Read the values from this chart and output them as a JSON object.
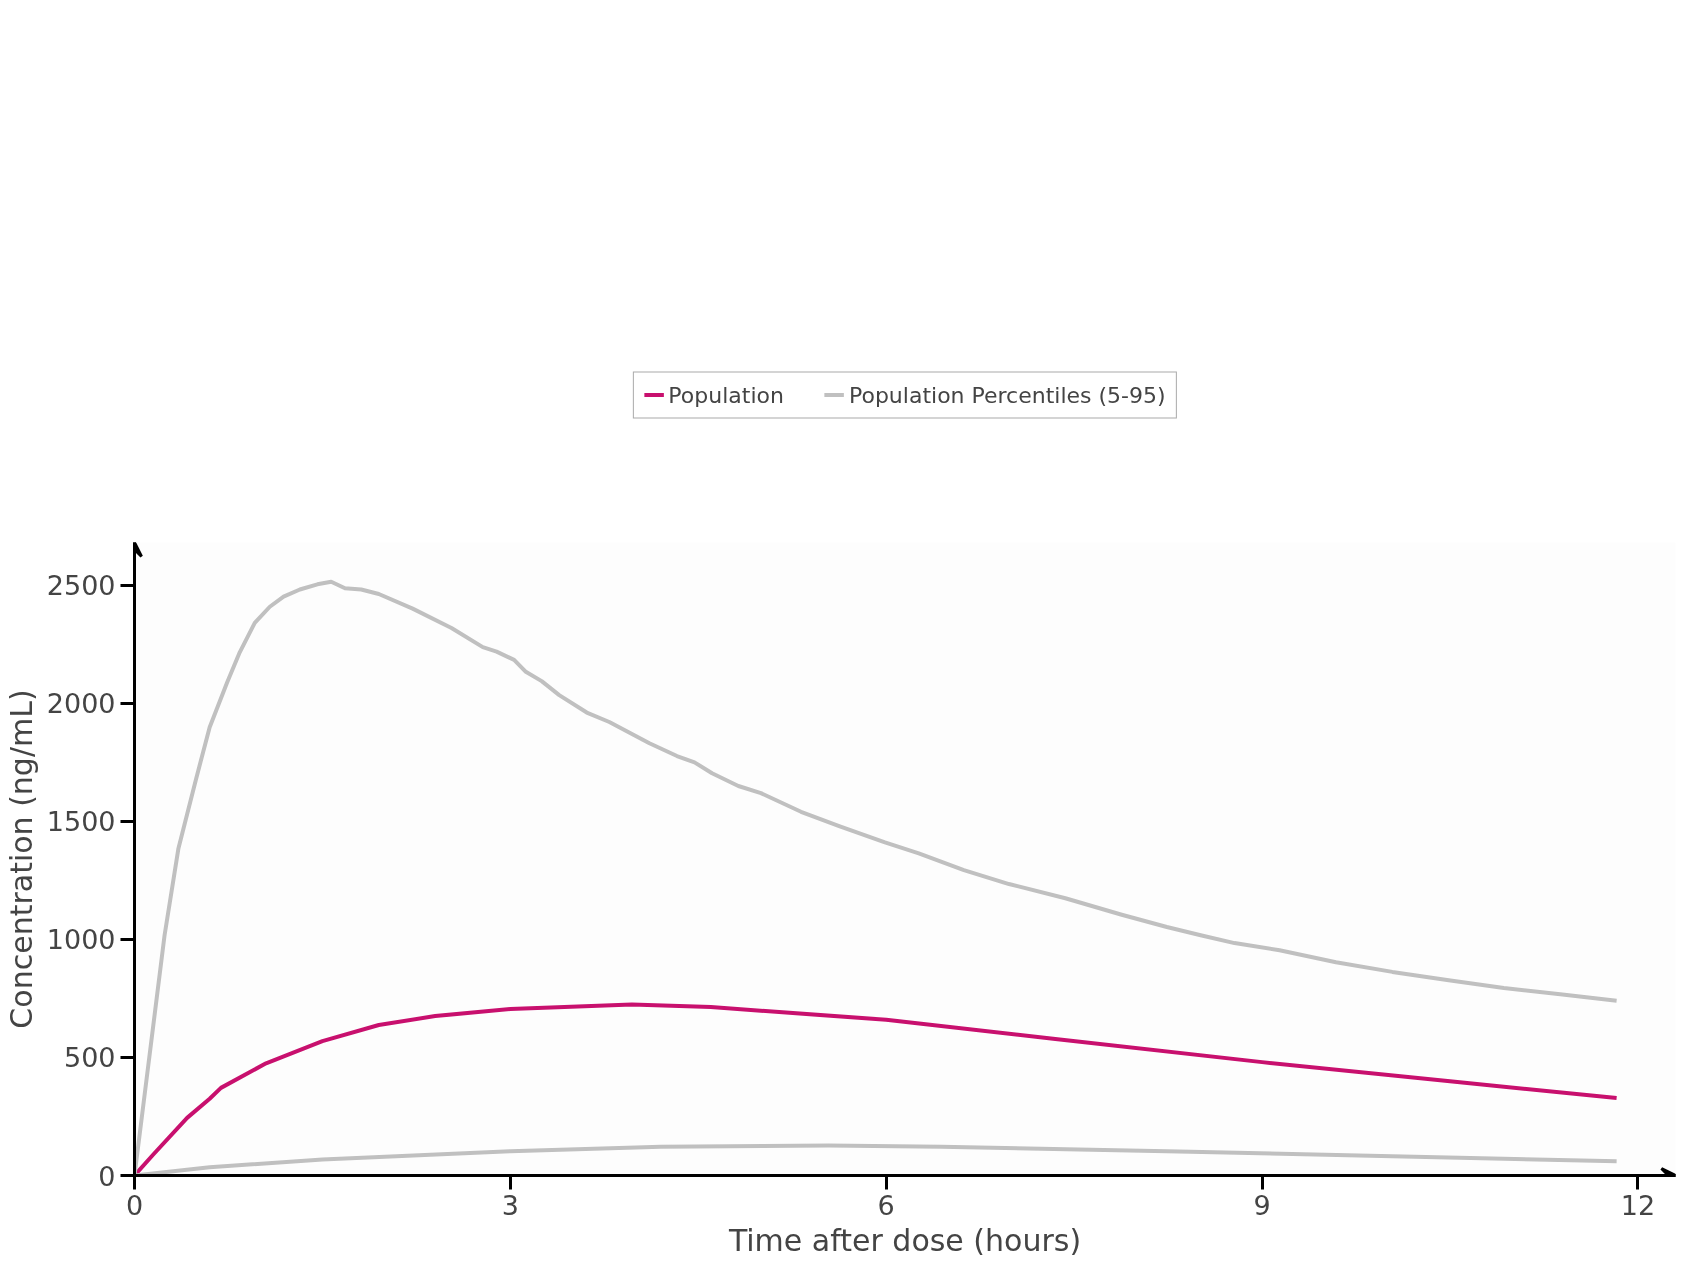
{
  "chart_data": {
    "type": "line",
    "xlabel": "Time after dose (hours)",
    "ylabel": "Concentration (ng/mL)",
    "xlim": [
      0,
      12.3
    ],
    "ylim": [
      0,
      2680
    ],
    "xticks": [
      0,
      3,
      6,
      9,
      12
    ],
    "yticks": [
      0,
      500,
      1000,
      1500,
      2000,
      2500
    ],
    "grid": false,
    "legend": "top",
    "marker": "none",
    "line_style": "solid",
    "series": [
      {
        "name": "Population",
        "color": "#c8106e",
        "x": [
          0,
          0.15,
          0.42,
          0.6,
          0.69,
          1.05,
          1.5,
          1.95,
          2.4,
          3,
          3.97,
          4.6,
          6,
          7.35,
          9,
          10.5,
          11.83
        ],
        "values": [
          0,
          89,
          244,
          325,
          371,
          475,
          569,
          637,
          675,
          705,
          724,
          713,
          659,
          578,
          480,
          399,
          328
        ]
      },
      {
        "name": "Population Percentiles (5-95)",
        "color": "#c0c0c0",
        "x": [
          0,
          0.24,
          0.35,
          0.49,
          0.6,
          0.74,
          0.84,
          0.96,
          1.08,
          1.19,
          1.32,
          1.46,
          1.57,
          1.68,
          1.81,
          1.95,
          2.22,
          2.53,
          2.78,
          2.89,
          3.03,
          3.12,
          3.25,
          3.39,
          3.61,
          3.79,
          4.11,
          4.33,
          4.47,
          4.61,
          4.82,
          5.0,
          5.32,
          5.63,
          5.99,
          6.26,
          6.62,
          6.98,
          7.43,
          7.88,
          8.24,
          8.51,
          8.78,
          9.14,
          9.59,
          10.04,
          10.49,
          10.93,
          11.38,
          11.83
        ],
        "values": [
          0,
          1017,
          1383,
          1676,
          1898,
          2088,
          2215,
          2340,
          2408,
          2451,
          2481,
          2503,
          2514,
          2486,
          2481,
          2462,
          2400,
          2318,
          2237,
          2218,
          2183,
          2134,
          2093,
          2034,
          1960,
          1920,
          1830,
          1776,
          1749,
          1703,
          1649,
          1619,
          1540,
          1478,
          1410,
          1364,
          1293,
          1234,
          1174,
          1104,
          1052,
          1017,
          984,
          954,
          903,
          862,
          827,
          794,
          767,
          740
        ]
      },
      {
        "color": "#c0c0c0",
        "x": [
          0,
          0.6,
          1.5,
          3,
          4.2,
          5.54,
          6.44,
          8.24,
          10.04,
          11.83
        ],
        "values": [
          0,
          35,
          68,
          103,
          122,
          127,
          122,
          103,
          81,
          60
        ]
      }
    ]
  }
}
